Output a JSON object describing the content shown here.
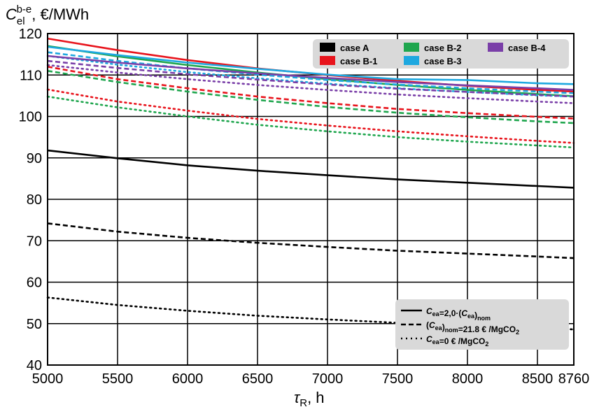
{
  "chart_data": {
    "type": "line",
    "ylabel": "C_el^b-e, €/MWh",
    "xlabel": "τ_R, h",
    "xlim": [
      5000,
      8760
    ],
    "ylim": [
      40,
      120
    ],
    "x_ticks": [
      5000,
      5500,
      6000,
      6500,
      7000,
      7500,
      8000,
      8500,
      8760
    ],
    "y_ticks": [
      40,
      50,
      60,
      70,
      80,
      90,
      100,
      110,
      120
    ],
    "grid": true,
    "legend_cases": {
      "position": "top-right",
      "items": [
        {
          "label": "case A",
          "color": "#000000"
        },
        {
          "label": "case B-1",
          "color": "#e8141c"
        },
        {
          "label": "case B-2",
          "color": "#1fa64e"
        },
        {
          "label": "case B-3",
          "color": "#1ea8e0"
        },
        {
          "label": "case B-4",
          "color": "#7a3fa8"
        }
      ]
    },
    "legend_styles": {
      "position": "bottom-right",
      "items": [
        {
          "text": "C_ea=2,0·(C_ea)_nom",
          "dash": "solid"
        },
        {
          "text": "(C_ea)_nom=21.8 € /MgCO₂",
          "dash": "dashed"
        },
        {
          "text": "C_ea=0 € /MgCO₂",
          "dash": "dotted"
        }
      ]
    },
    "x": [
      5000,
      5500,
      6000,
      6500,
      7000,
      7500,
      8000,
      8500,
      8760
    ],
    "series": [
      {
        "name": "case A",
        "style": "solid",
        "color": "#000000",
        "values": [
          91.8,
          89.9,
          88.2,
          86.9,
          85.8,
          84.8,
          84.0,
          83.2,
          82.8
        ]
      },
      {
        "name": "case A",
        "style": "dashed",
        "color": "#000000",
        "values": [
          74.2,
          72.2,
          70.7,
          69.5,
          68.5,
          67.6,
          66.9,
          66.2,
          65.8
        ]
      },
      {
        "name": "case A",
        "style": "dotted",
        "color": "#000000",
        "values": [
          56.3,
          54.5,
          53.1,
          51.9,
          51.0,
          50.2,
          49.5,
          48.9,
          48.6
        ]
      },
      {
        "name": "case B-1",
        "style": "solid",
        "color": "#e8141c",
        "values": [
          118.8,
          116.0,
          113.6,
          111.6,
          110.0,
          108.6,
          107.4,
          106.4,
          106.0
        ]
      },
      {
        "name": "case B-1",
        "style": "dashed",
        "color": "#e8141c",
        "values": [
          112.0,
          109.0,
          106.8,
          104.8,
          103.2,
          101.8,
          100.8,
          99.9,
          99.5
        ]
      },
      {
        "name": "case B-1",
        "style": "dotted",
        "color": "#e8141c",
        "values": [
          106.5,
          103.6,
          101.4,
          99.4,
          97.8,
          96.4,
          95.2,
          94.1,
          93.6
        ]
      },
      {
        "name": "case B-2",
        "style": "solid",
        "color": "#1fa64e",
        "values": [
          117.0,
          114.5,
          112.4,
          110.6,
          109.0,
          107.6,
          106.4,
          105.4,
          104.9
        ]
      },
      {
        "name": "case B-2",
        "style": "dashed",
        "color": "#1fa64e",
        "values": [
          111.0,
          108.3,
          106.0,
          104.0,
          102.3,
          100.9,
          99.8,
          98.8,
          98.4
        ]
      },
      {
        "name": "case B-2",
        "style": "dotted",
        "color": "#1fa64e",
        "values": [
          104.8,
          102.2,
          100.0,
          98.0,
          96.4,
          95.0,
          93.9,
          93.0,
          92.5
        ]
      },
      {
        "name": "case B-3",
        "style": "solid",
        "color": "#1ea8e0",
        "values": [
          116.8,
          114.8,
          113.0,
          111.5,
          110.1,
          109.0,
          108.8,
          108.0,
          107.8
        ]
      },
      {
        "name": "case B-3",
        "style": "dashed",
        "color": "#1ea8e0",
        "values": [
          115.5,
          113.4,
          111.6,
          110.1,
          108.8,
          107.7,
          106.8,
          106.0,
          105.6
        ]
      },
      {
        "name": "case B-3",
        "style": "dotted",
        "color": "#1ea8e0",
        "values": [
          114.6,
          112.5,
          110.7,
          109.2,
          107.9,
          106.8,
          105.9,
          105.1,
          104.8
        ]
      },
      {
        "name": "case B-4",
        "style": "solid",
        "color": "#7a3fa8",
        "values": [
          114.6,
          113.0,
          111.6,
          110.4,
          109.3,
          108.3,
          107.5,
          106.8,
          106.4
        ]
      },
      {
        "name": "case B-4",
        "style": "dashed",
        "color": "#7a3fa8",
        "values": [
          113.4,
          111.7,
          110.2,
          108.9,
          107.7,
          106.7,
          105.9,
          105.2,
          104.8
        ]
      },
      {
        "name": "case B-4",
        "style": "dotted",
        "color": "#7a3fa8",
        "values": [
          112.4,
          110.6,
          109.0,
          107.6,
          106.4,
          105.3,
          104.4,
          103.6,
          103.2
        ]
      }
    ]
  }
}
